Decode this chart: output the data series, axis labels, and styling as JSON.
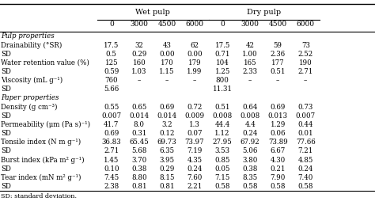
{
  "col_headers_top": [
    "",
    "Wet pulp",
    "",
    "",
    "",
    "Dry pulp",
    "",
    "",
    ""
  ],
  "col_headers_sub": [
    "",
    "0",
    "3000",
    "4500",
    "6000",
    "0",
    "3000",
    "4500",
    "6000"
  ],
  "rows": [
    [
      "Pulp properties",
      "",
      "",
      "",
      "",
      "",
      "",
      "",
      ""
    ],
    [
      "Drainability (°SR)",
      "17.5",
      "32",
      "43",
      "62",
      "17.5",
      "42",
      "59",
      "73"
    ],
    [
      "SD",
      "0.5",
      "0.29",
      "0.00",
      "0.00",
      "0.71",
      "1.00",
      "2.36",
      "2.52"
    ],
    [
      "Water retention value (%)",
      "125",
      "160",
      "170",
      "179",
      "104",
      "165",
      "177",
      "190"
    ],
    [
      "SD",
      "0.59",
      "1.03",
      "1.15",
      "1.99",
      "1.25",
      "2.33",
      "0.51",
      "2.71"
    ],
    [
      "Viscosity (mL g⁻¹)",
      "760",
      "–",
      "–",
      "–",
      "800",
      "–",
      "–",
      "–"
    ],
    [
      "SD",
      "5.66",
      "",
      "",
      "",
      "11.31",
      "",
      "",
      ""
    ],
    [
      "Paper properties",
      "",
      "",
      "",
      "",
      "",
      "",
      "",
      ""
    ],
    [
      "Density (g cm⁻³)",
      "0.55",
      "0.65",
      "0.69",
      "0.72",
      "0.51",
      "0.64",
      "0.69",
      "0.73"
    ],
    [
      "SD",
      "0.007",
      "0.014",
      "0.014",
      "0.009",
      "0.008",
      "0.008",
      "0.013",
      "0.007"
    ],
    [
      "Permeability (μm (Pa s)⁻¹)",
      "41.7",
      "8.0",
      "3.2",
      "1.3",
      "44.4",
      "4.4",
      "1.29",
      "0.44"
    ],
    [
      "SD",
      "0.69",
      "0.31",
      "0.12",
      "0.07",
      "1.12",
      "0.24",
      "0.06",
      "0.01"
    ],
    [
      "Tensile index (N m g⁻¹)",
      "36.83",
      "65.45",
      "69.73",
      "73.97",
      "27.95",
      "67.92",
      "73.89",
      "77.66"
    ],
    [
      "SD",
      "2.71",
      "5.68",
      "6.35",
      "7.19",
      "3.53",
      "5.06",
      "6.67",
      "7.21"
    ],
    [
      "Burst index (kPa m² g⁻¹)",
      "1.45",
      "3.70",
      "3.95",
      "4.35",
      "0.85",
      "3.80",
      "4.30",
      "4.85"
    ],
    [
      "SD",
      "0.10",
      "0.38",
      "0.29",
      "0.24",
      "0.05",
      "0.38",
      "0.21",
      "0.24"
    ],
    [
      "Tear index (mN m² g⁻¹)",
      "7.45",
      "8.80",
      "8.15",
      "7.60",
      "7.15",
      "8.35",
      "7.90",
      "7.40"
    ],
    [
      "SD",
      "2.38",
      "0.81",
      "0.81",
      "2.21",
      "0.58",
      "0.58",
      "0.58",
      "0.58"
    ]
  ],
  "footer": "SD: standard deviation.",
  "italic_rows": [
    0,
    7
  ],
  "bold_rows": [
    0,
    7
  ]
}
